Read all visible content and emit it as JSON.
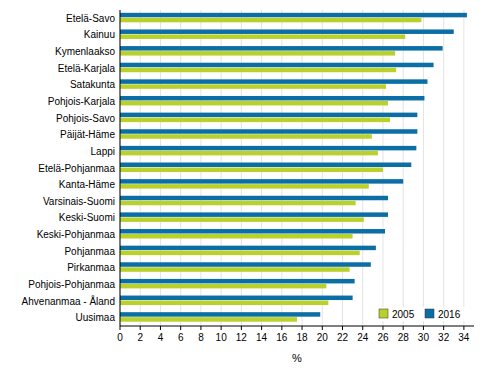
{
  "chart_data": {
    "type": "bar",
    "orientation": "horizontal",
    "categories": [
      "Etelä-Savo",
      "Kainuu",
      "Kymenlaakso",
      "Etelä-Karjala",
      "Satakunta",
      "Pohjois-Karjala",
      "Pohjois-Savo",
      "Päijät-Häme",
      "Lappi",
      "Etelä-Pohjanmaa",
      "Kanta-Häme",
      "Varsinais-Suomi",
      "Keski-Suomi",
      "Keski-Pohjanmaa",
      "Pohjanmaa",
      "Pirkanmaa",
      "Pohjois-Pohjanmaa",
      "Ahvenanmaa - Åland",
      "Uusimaa"
    ],
    "series": [
      {
        "name": "2005",
        "color": "#b9d12a",
        "values": [
          29.8,
          28.2,
          27.2,
          27.3,
          26.3,
          26.5,
          26.7,
          24.9,
          25.5,
          26.0,
          24.6,
          23.3,
          24.1,
          23.0,
          23.7,
          22.7,
          20.4,
          20.6,
          17.5
        ]
      },
      {
        "name": "2016",
        "color": "#0b6fa6",
        "values": [
          34.3,
          33.0,
          31.9,
          31.0,
          30.4,
          30.1,
          29.4,
          29.4,
          29.3,
          28.8,
          28.0,
          26.5,
          26.5,
          26.2,
          25.3,
          24.8,
          23.2,
          23.0,
          19.8
        ]
      }
    ],
    "x_label": "%",
    "xlim": [
      0,
      35
    ],
    "xticks": [
      0,
      2,
      4,
      6,
      8,
      10,
      12,
      14,
      16,
      18,
      20,
      22,
      24,
      26,
      28,
      30,
      32,
      34
    ],
    "grid": true,
    "legend": "bottom-right"
  }
}
